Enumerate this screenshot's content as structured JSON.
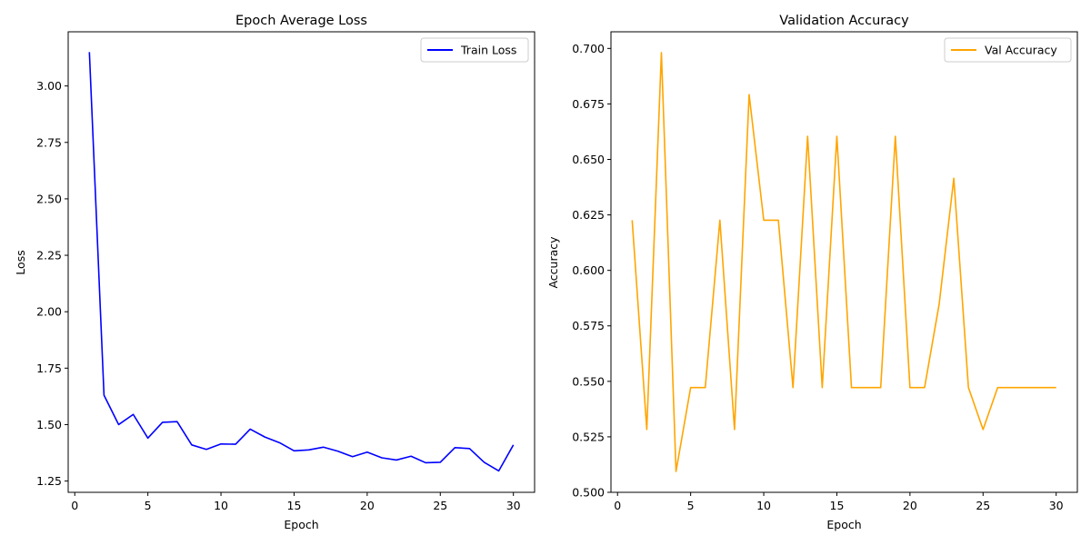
{
  "chart_data": [
    {
      "type": "line",
      "title": "Epoch Average Loss",
      "xlabel": "Epoch",
      "ylabel": "Loss",
      "xlim": [
        -0.45,
        31.45
      ],
      "ylim": [
        1.2,
        3.24
      ],
      "xticks": [
        0,
        5,
        10,
        15,
        20,
        25,
        30
      ],
      "xtick_labels": [
        "0",
        "5",
        "10",
        "15",
        "20",
        "25",
        "30"
      ],
      "yticks": [
        1.25,
        1.5,
        1.75,
        2.0,
        2.25,
        2.5,
        2.75,
        3.0
      ],
      "ytick_labels": [
        "1.25",
        "1.50",
        "1.75",
        "2.00",
        "2.25",
        "2.50",
        "2.75",
        "3.00"
      ],
      "grid": false,
      "legend_position": "upper right",
      "series": [
        {
          "name": "Train Loss",
          "color": "#0000ff",
          "x": [
            1,
            2,
            3,
            4,
            5,
            6,
            7,
            8,
            9,
            10,
            11,
            12,
            13,
            14,
            15,
            16,
            17,
            18,
            19,
            20,
            21,
            22,
            23,
            24,
            25,
            26,
            27,
            28,
            29,
            30
          ],
          "y": [
            3.15,
            1.63,
            1.5,
            1.545,
            1.44,
            1.51,
            1.513,
            1.41,
            1.39,
            1.414,
            1.413,
            1.48,
            1.445,
            1.42,
            1.384,
            1.388,
            1.4,
            1.382,
            1.358,
            1.378,
            1.353,
            1.343,
            1.36,
            1.331,
            1.333,
            1.398,
            1.394,
            1.333,
            1.295,
            1.41
          ]
        }
      ]
    },
    {
      "type": "line",
      "title": "Validation Accuracy",
      "xlabel": "Epoch",
      "ylabel": "Accuracy",
      "xlim": [
        -0.45,
        31.45
      ],
      "ylim": [
        0.5,
        0.7075
      ],
      "xticks": [
        0,
        5,
        10,
        15,
        20,
        25,
        30
      ],
      "xtick_labels": [
        "0",
        "5",
        "10",
        "15",
        "20",
        "25",
        "30"
      ],
      "yticks": [
        0.5,
        0.525,
        0.55,
        0.575,
        0.6,
        0.625,
        0.65,
        0.675,
        0.7
      ],
      "ytick_labels": [
        "0.500",
        "0.525",
        "0.550",
        "0.575",
        "0.600",
        "0.625",
        "0.650",
        "0.675",
        "0.700"
      ],
      "grid": false,
      "legend_position": "upper right",
      "series": [
        {
          "name": "Val Accuracy",
          "color": "#ffa500",
          "x": [
            1,
            2,
            3,
            4,
            5,
            6,
            7,
            8,
            9,
            10,
            11,
            12,
            13,
            14,
            15,
            16,
            17,
            18,
            19,
            20,
            21,
            22,
            23,
            24,
            25,
            26,
            27,
            28,
            29,
            30
          ],
          "y": [
            0.6226,
            0.5283,
            0.6981,
            0.5094,
            0.5472,
            0.5472,
            0.6226,
            0.5283,
            0.6792,
            0.6226,
            0.6226,
            0.5472,
            0.6604,
            0.5472,
            0.6604,
            0.5472,
            0.5472,
            0.5472,
            0.6604,
            0.5472,
            0.5472,
            0.5849,
            0.6415,
            0.5472,
            0.5283,
            0.5472,
            0.5472,
            0.5472,
            0.5472,
            0.5472
          ]
        }
      ]
    }
  ]
}
